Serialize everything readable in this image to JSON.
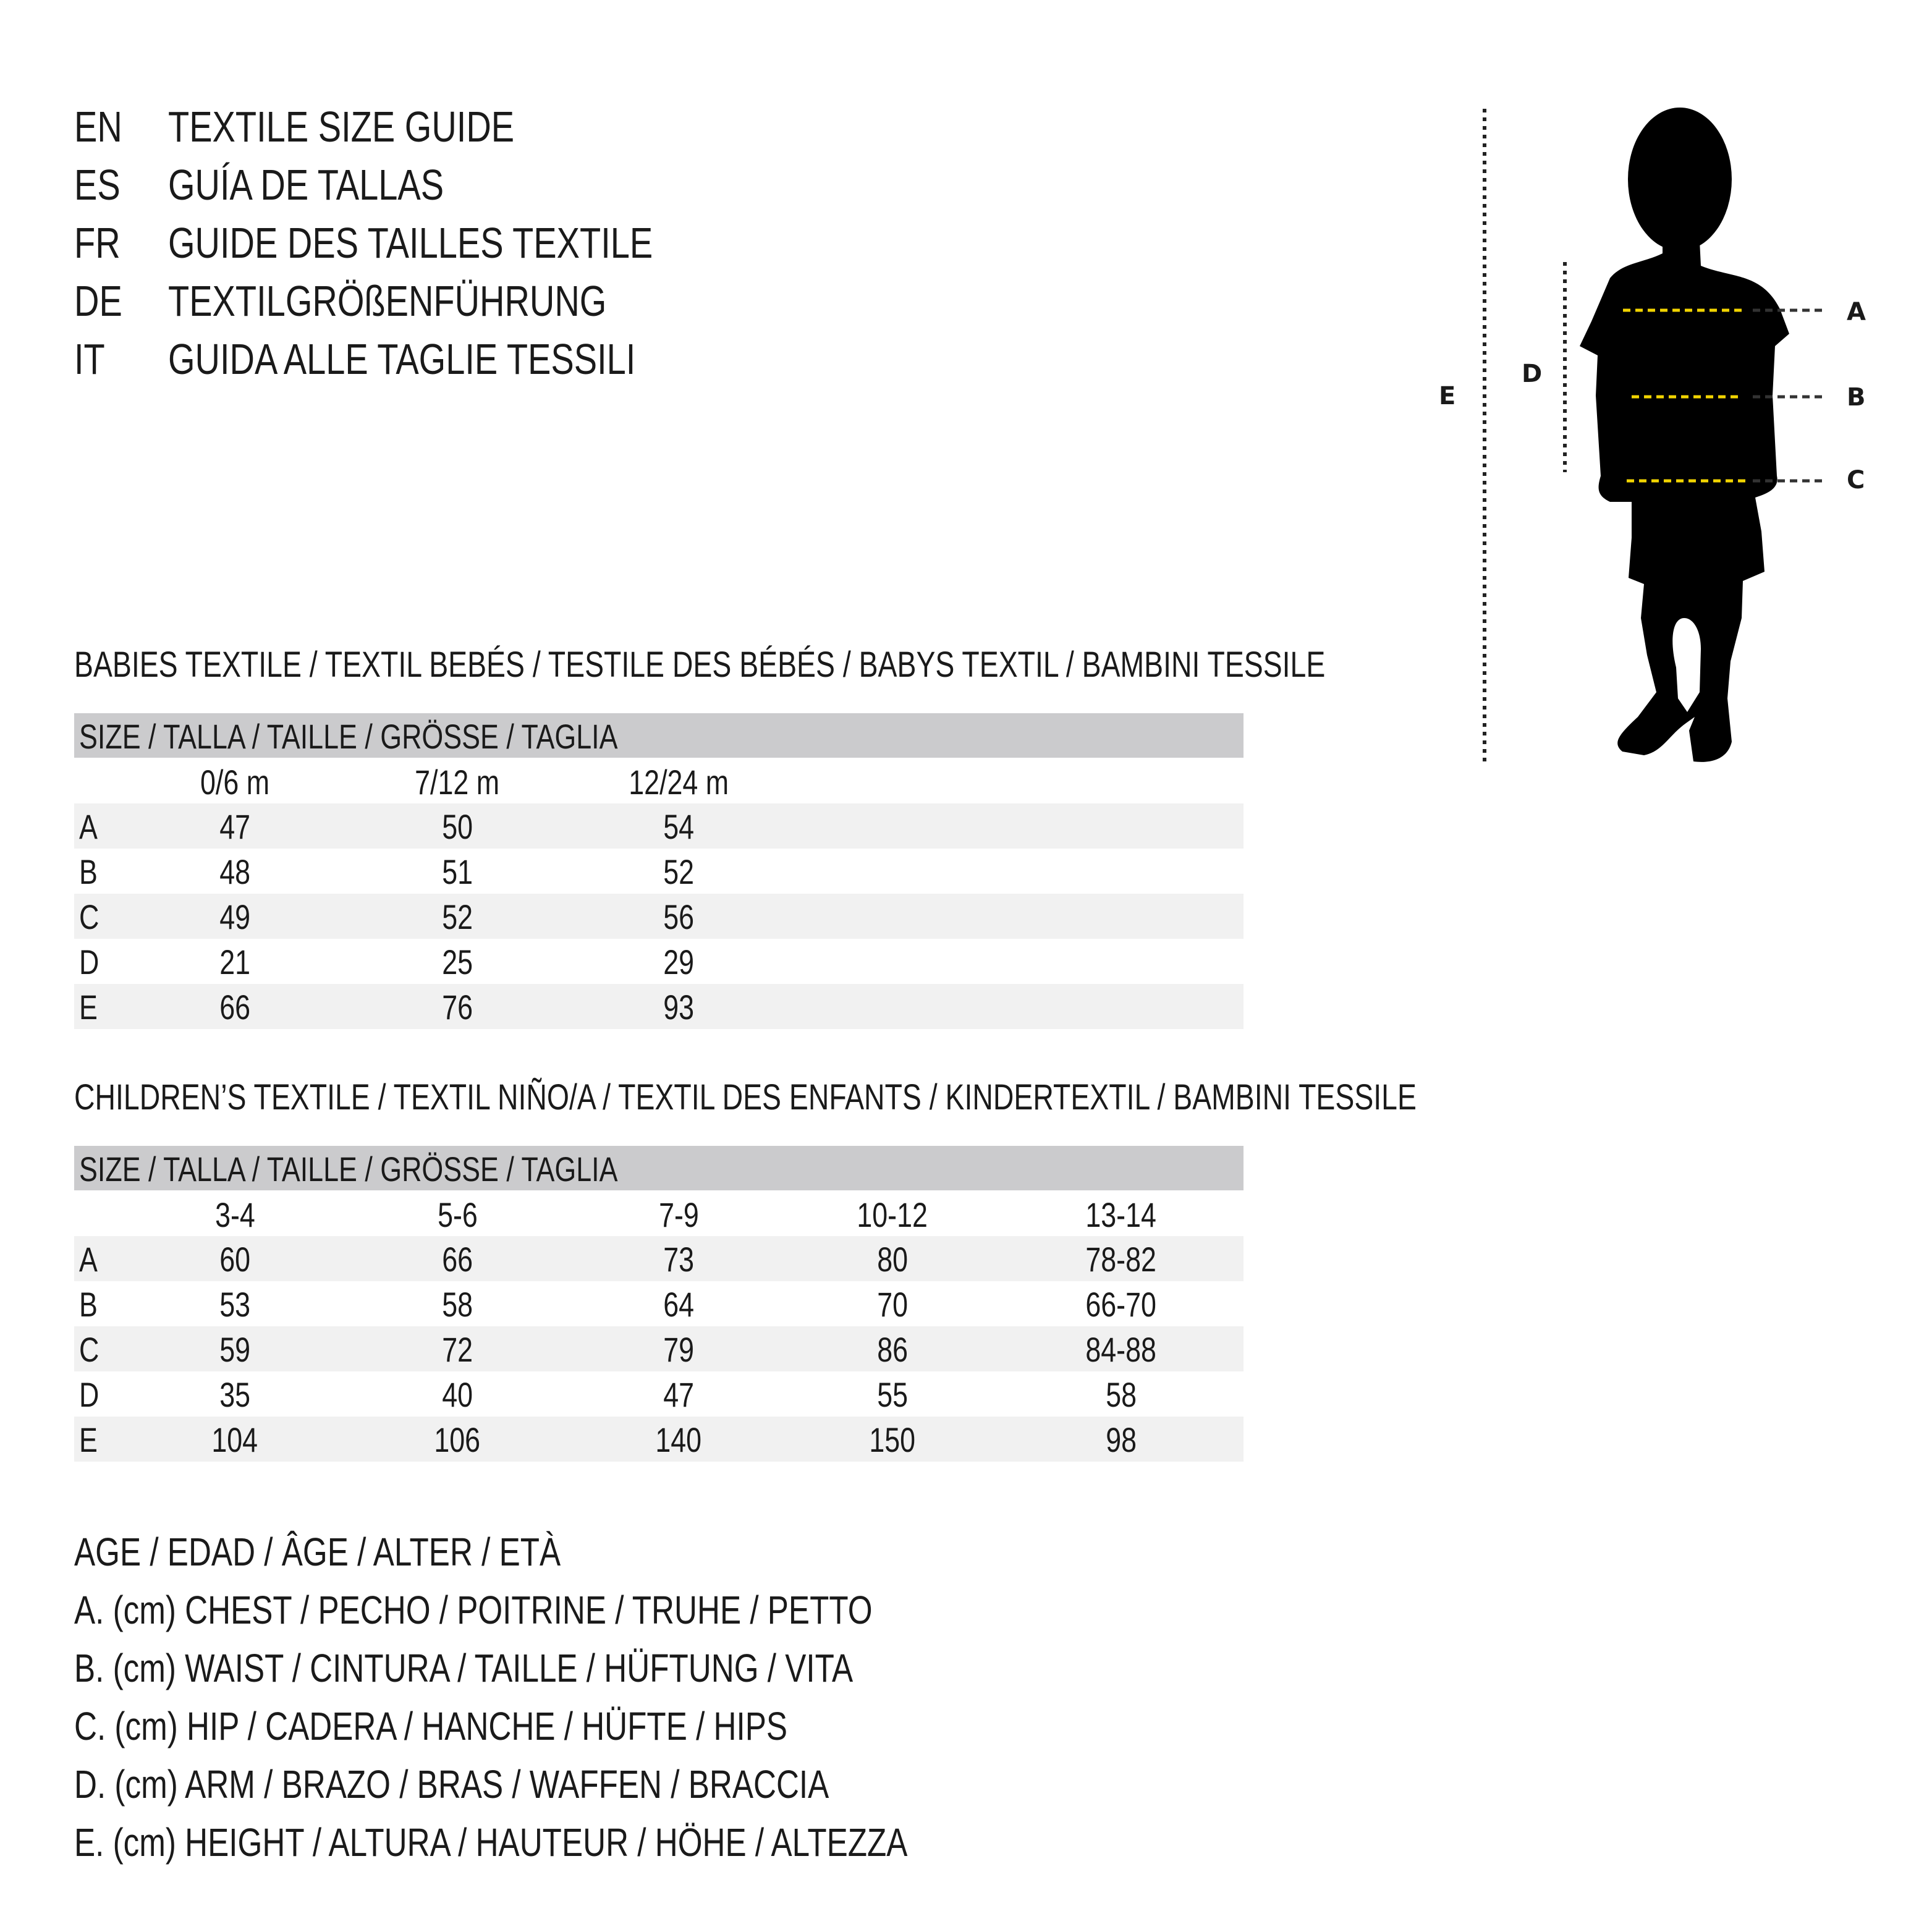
{
  "header": [
    {
      "code": "EN",
      "text": "TEXTILE SIZE GUIDE"
    },
    {
      "code": "ES",
      "text": "GUÍA DE TALLAS"
    },
    {
      "code": "FR",
      "text": "GUIDE DES TAILLES TEXTILE"
    },
    {
      "code": "DE",
      "text": "TEXTILGRÖßENFÜHRUNG"
    },
    {
      "code": "IT",
      "text": "GUIDA ALLE TAGLIE TESSILI"
    }
  ],
  "figure": {
    "labels": {
      "a": "A",
      "b": "B",
      "c": "C",
      "d": "D",
      "e": "E"
    },
    "measure_line_color": "#f2d400",
    "silhouette_color": "#000000"
  },
  "babies": {
    "title": "BABIES TEXTILE / TEXTIL BEBÉS / TESTILE DES BÉBÉS / BABYS TEXTIL / BAMBINI TESSILE",
    "size_header": "SIZE / TALLA / TAILLE / GRÖSSE / TAGLIA",
    "columns": [
      "0/6 m",
      "7/12 m",
      "12/24 m"
    ],
    "rows": [
      {
        "label": "A",
        "values": [
          "47",
          "50",
          "54"
        ]
      },
      {
        "label": "B",
        "values": [
          "48",
          "51",
          "52"
        ]
      },
      {
        "label": "C",
        "values": [
          "49",
          "52",
          "56"
        ]
      },
      {
        "label": "D",
        "values": [
          "21",
          "25",
          "29"
        ]
      },
      {
        "label": "E",
        "values": [
          "66",
          "76",
          "93"
        ]
      }
    ]
  },
  "children": {
    "title": "CHILDREN’S TEXTILE / TEXTIL NIÑO/A / TEXTIL DES ENFANTS / KINDERTEXTIL / BAMBINI TESSILE",
    "size_header": "SIZE / TALLA / TAILLE / GRÖSSE / TAGLIA",
    "columns": [
      "3-4",
      "5-6",
      "7-9",
      "10-12",
      "13-14"
    ],
    "rows": [
      {
        "label": "A",
        "values": [
          "60",
          "66",
          "73",
          "80",
          "78-82"
        ]
      },
      {
        "label": "B",
        "values": [
          "53",
          "58",
          "64",
          "70",
          "66-70"
        ]
      },
      {
        "label": "C",
        "values": [
          "59",
          "72",
          "79",
          "86",
          "84-88"
        ]
      },
      {
        "label": "D",
        "values": [
          "35",
          "40",
          "47",
          "55",
          "58"
        ]
      },
      {
        "label": "E",
        "values": [
          "104",
          "106",
          "140",
          "150",
          "98"
        ]
      }
    ]
  },
  "legend": [
    "AGE / EDAD / ÂGE / ALTER / ETÀ",
    "A. (cm) CHEST / PECHO / POITRINE / TRUHE / PETTO",
    "B. (cm) WAIST / CINTURA / TAILLE / HÜFTUNG / VITA",
    "C. (cm) HIP / CADERA / HANCHE / HÜFTE / HIPS",
    "D. (cm) ARM / BRAZO / BRAS / WAFFEN / BRACCIA",
    "E. (cm) HEIGHT / ALTURA / HAUTEUR / HÖHE / ALTEZZA"
  ]
}
